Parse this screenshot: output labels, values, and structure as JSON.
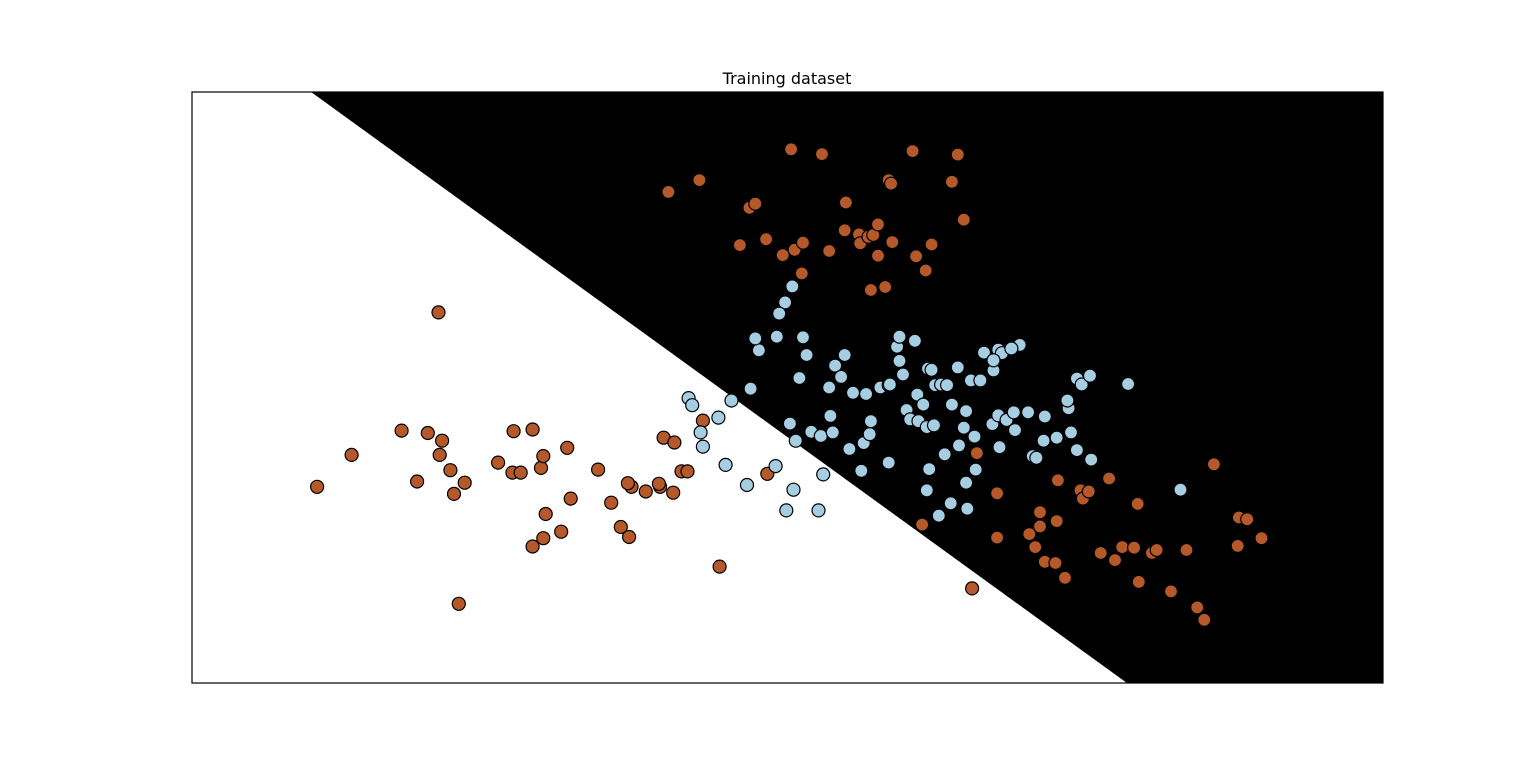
{
  "chart_data": {
    "type": "scatter",
    "title": "Training dataset",
    "xlabel": "",
    "ylabel": "",
    "xlim": [
      0,
      10
    ],
    "ylim": [
      0,
      10
    ],
    "grid": false,
    "legend": "none",
    "ticks_visible": false,
    "decision_regions": {
      "description": "linear decision boundary",
      "boundary_line": [
        [
          1.0,
          10.0
        ],
        [
          7.85,
          0.0
        ]
      ],
      "left_region_color": "#ffffff",
      "right_region_color": "#000000"
    },
    "series": [
      {
        "class": 0,
        "color": "#b5592b",
        "points": [
          [
            1.05,
            3.32
          ],
          [
            1.34,
            3.86
          ],
          [
            1.76,
            4.27
          ],
          [
            1.89,
            3.41
          ],
          [
            1.98,
            4.23
          ],
          [
            2.08,
            3.86
          ],
          [
            2.07,
            6.27
          ],
          [
            2.1,
            4.1
          ],
          [
            2.17,
            3.6
          ],
          [
            2.2,
            3.2
          ],
          [
            2.24,
            1.34
          ],
          [
            2.29,
            3.39
          ],
          [
            2.57,
            3.73
          ],
          [
            2.7,
            4.26
          ],
          [
            2.69,
            3.56
          ],
          [
            2.76,
            3.56
          ],
          [
            2.86,
            2.31
          ],
          [
            2.86,
            4.29
          ],
          [
            2.95,
            2.45
          ],
          [
            2.93,
            3.64
          ],
          [
            2.95,
            3.84
          ],
          [
            2.97,
            2.86
          ],
          [
            3.1,
            2.56
          ],
          [
            3.15,
            3.98
          ],
          [
            3.18,
            3.12
          ],
          [
            3.41,
            3.61
          ],
          [
            3.52,
            3.05
          ],
          [
            3.6,
            2.64
          ],
          [
            3.67,
            2.47
          ],
          [
            3.69,
            3.32
          ],
          [
            3.66,
            3.38
          ],
          [
            3.93,
            3.32
          ],
          [
            3.81,
            3.24
          ],
          [
            3.92,
            3.37
          ],
          [
            3.96,
            4.15
          ],
          [
            4.05,
            4.07
          ],
          [
            4.04,
            3.22
          ],
          [
            4.11,
            3.58
          ],
          [
            4.16,
            3.58
          ],
          [
            4.29,
            4.44
          ],
          [
            4.43,
            1.97
          ],
          [
            4.83,
            3.54
          ],
          [
            6.55,
            1.6
          ],
          [
            4.0,
            8.31
          ],
          [
            4.26,
            8.51
          ],
          [
            4.6,
            7.41
          ],
          [
            4.68,
            8.04
          ],
          [
            4.73,
            8.11
          ],
          [
            4.82,
            7.51
          ],
          [
            4.96,
            7.24
          ],
          [
            5.06,
            7.33
          ],
          [
            5.13,
            7.45
          ],
          [
            5.03,
            9.03
          ],
          [
            5.12,
            6.93
          ],
          [
            5.29,
            8.95
          ],
          [
            5.35,
            7.31
          ],
          [
            5.49,
            8.13
          ],
          [
            5.48,
            7.66
          ],
          [
            5.6,
            7.59
          ],
          [
            5.61,
            7.44
          ],
          [
            5.68,
            7.55
          ],
          [
            5.7,
            6.65
          ],
          [
            5.72,
            7.58
          ],
          [
            5.76,
            7.76
          ],
          [
            5.76,
            7.23
          ],
          [
            5.82,
            6.7
          ],
          [
            5.85,
            8.51
          ],
          [
            5.87,
            8.45
          ],
          [
            5.88,
            7.46
          ],
          [
            6.05,
            9.0
          ],
          [
            6.08,
            7.22
          ],
          [
            6.16,
            6.98
          ],
          [
            6.21,
            7.42
          ],
          [
            6.38,
            8.48
          ],
          [
            6.43,
            8.94
          ],
          [
            6.48,
            7.84
          ],
          [
            6.13,
            2.68
          ],
          [
            6.59,
            3.89
          ],
          [
            6.76,
            3.21
          ],
          [
            6.76,
            2.46
          ],
          [
            7.03,
            2.52
          ],
          [
            7.12,
            2.65
          ],
          [
            7.12,
            2.89
          ],
          [
            7.27,
            3.43
          ],
          [
            7.26,
            2.74
          ],
          [
            7.08,
            2.3
          ],
          [
            7.16,
            2.05
          ],
          [
            7.25,
            2.03
          ],
          [
            7.33,
            1.78
          ],
          [
            7.46,
            3.26
          ],
          [
            7.48,
            3.12
          ],
          [
            7.53,
            3.24
          ],
          [
            7.63,
            2.2
          ],
          [
            7.75,
            2.08
          ],
          [
            7.7,
            3.46
          ],
          [
            7.81,
            2.3
          ],
          [
            7.94,
            3.03
          ],
          [
            7.95,
            1.71
          ],
          [
            7.91,
            2.29
          ],
          [
            8.06,
            2.2
          ],
          [
            8.1,
            2.25
          ],
          [
            8.22,
            1.55
          ],
          [
            8.35,
            2.25
          ],
          [
            8.44,
            1.28
          ],
          [
            8.5,
            1.07
          ],
          [
            8.58,
            3.7
          ],
          [
            8.78,
            2.32
          ],
          [
            8.79,
            2.8
          ],
          [
            8.86,
            2.77
          ],
          [
            8.98,
            2.45
          ]
        ]
      },
      {
        "class": 1,
        "color": "#a6cee3",
        "points": [
          [
            4.17,
            4.82
          ],
          [
            4.2,
            4.7
          ],
          [
            4.27,
            4.24
          ],
          [
            4.29,
            4.0
          ],
          [
            4.42,
            4.49
          ],
          [
            4.53,
            4.78
          ],
          [
            4.69,
            4.98
          ],
          [
            4.48,
            3.69
          ],
          [
            4.66,
            3.35
          ],
          [
            4.9,
            3.67
          ],
          [
            4.99,
            2.92
          ],
          [
            5.3,
            3.53
          ],
          [
            4.98,
            6.44
          ],
          [
            5.04,
            6.71
          ],
          [
            4.93,
            6.25
          ],
          [
            5.13,
            5.85
          ],
          [
            5.16,
            5.55
          ],
          [
            5.1,
            5.16
          ],
          [
            4.76,
            5.63
          ],
          [
            4.73,
            5.83
          ],
          [
            4.91,
            5.86
          ],
          [
            5.02,
            4.39
          ],
          [
            5.07,
            4.1
          ],
          [
            5.2,
            4.25
          ],
          [
            5.28,
            4.18
          ],
          [
            5.35,
            5.0
          ],
          [
            5.4,
            5.37
          ],
          [
            5.45,
            5.18
          ],
          [
            5.48,
            5.55
          ],
          [
            5.55,
            4.91
          ],
          [
            5.52,
            3.96
          ],
          [
            5.64,
            4.06
          ],
          [
            5.66,
            4.89
          ],
          [
            5.69,
            4.21
          ],
          [
            5.62,
            3.59
          ],
          [
            5.78,
            5.0
          ],
          [
            5.85,
            5.04
          ],
          [
            5.86,
            5.05
          ],
          [
            5.92,
            5.69
          ],
          [
            5.94,
            5.45
          ],
          [
            5.94,
            5.86
          ],
          [
            5.97,
            5.22
          ],
          [
            6.0,
            4.62
          ],
          [
            6.03,
            4.46
          ],
          [
            6.07,
            5.79
          ],
          [
            6.09,
            4.88
          ],
          [
            6.1,
            4.43
          ],
          [
            6.14,
            4.71
          ],
          [
            6.18,
            5.32
          ],
          [
            6.17,
            4.33
          ],
          [
            6.24,
            5.04
          ],
          [
            6.21,
            5.3
          ],
          [
            6.23,
            4.36
          ],
          [
            6.29,
            5.05
          ],
          [
            6.32,
            3.87
          ],
          [
            6.34,
            5.04
          ],
          [
            6.38,
            4.71
          ],
          [
            6.43,
            5.34
          ],
          [
            6.48,
            4.32
          ],
          [
            6.5,
            4.6
          ],
          [
            6.54,
            5.12
          ],
          [
            6.58,
            3.61
          ],
          [
            6.62,
            5.12
          ],
          [
            6.72,
            4.38
          ],
          [
            6.73,
            5.29
          ],
          [
            6.77,
            4.53
          ],
          [
            6.77,
            5.64
          ],
          [
            6.8,
            5.58
          ],
          [
            6.84,
            4.45
          ],
          [
            6.91,
            4.28
          ],
          [
            6.95,
            5.72
          ],
          [
            7.06,
            3.84
          ],
          [
            7.15,
            4.1
          ],
          [
            7.36,
            4.65
          ],
          [
            7.43,
            3.94
          ],
          [
            7.55,
            3.78
          ],
          [
            7.43,
            5.15
          ],
          [
            7.47,
            5.05
          ],
          [
            7.54,
            5.2
          ],
          [
            7.86,
            5.06
          ],
          [
            8.3,
            3.27
          ],
          [
            5.05,
            3.27
          ],
          [
            5.26,
            2.92
          ],
          [
            5.36,
            4.52
          ],
          [
            5.38,
            4.24
          ],
          [
            5.7,
            4.43
          ],
          [
            5.85,
            3.73
          ],
          [
            6.17,
            3.26
          ],
          [
            6.19,
            3.62
          ],
          [
            6.44,
            4.02
          ],
          [
            6.65,
            5.59
          ],
          [
            6.73,
            5.46
          ],
          [
            6.78,
            3.99
          ],
          [
            6.88,
            5.66
          ],
          [
            6.9,
            4.58
          ],
          [
            7.02,
            4.58
          ],
          [
            7.09,
            3.81
          ],
          [
            7.16,
            4.51
          ],
          [
            7.26,
            4.15
          ],
          [
            7.35,
            4.78
          ],
          [
            7.38,
            4.24
          ],
          [
            6.5,
            3.39
          ],
          [
            6.37,
            3.04
          ],
          [
            6.27,
            2.83
          ],
          [
            6.51,
            2.95
          ],
          [
            6.57,
            4.17
          ]
        ]
      }
    ]
  }
}
